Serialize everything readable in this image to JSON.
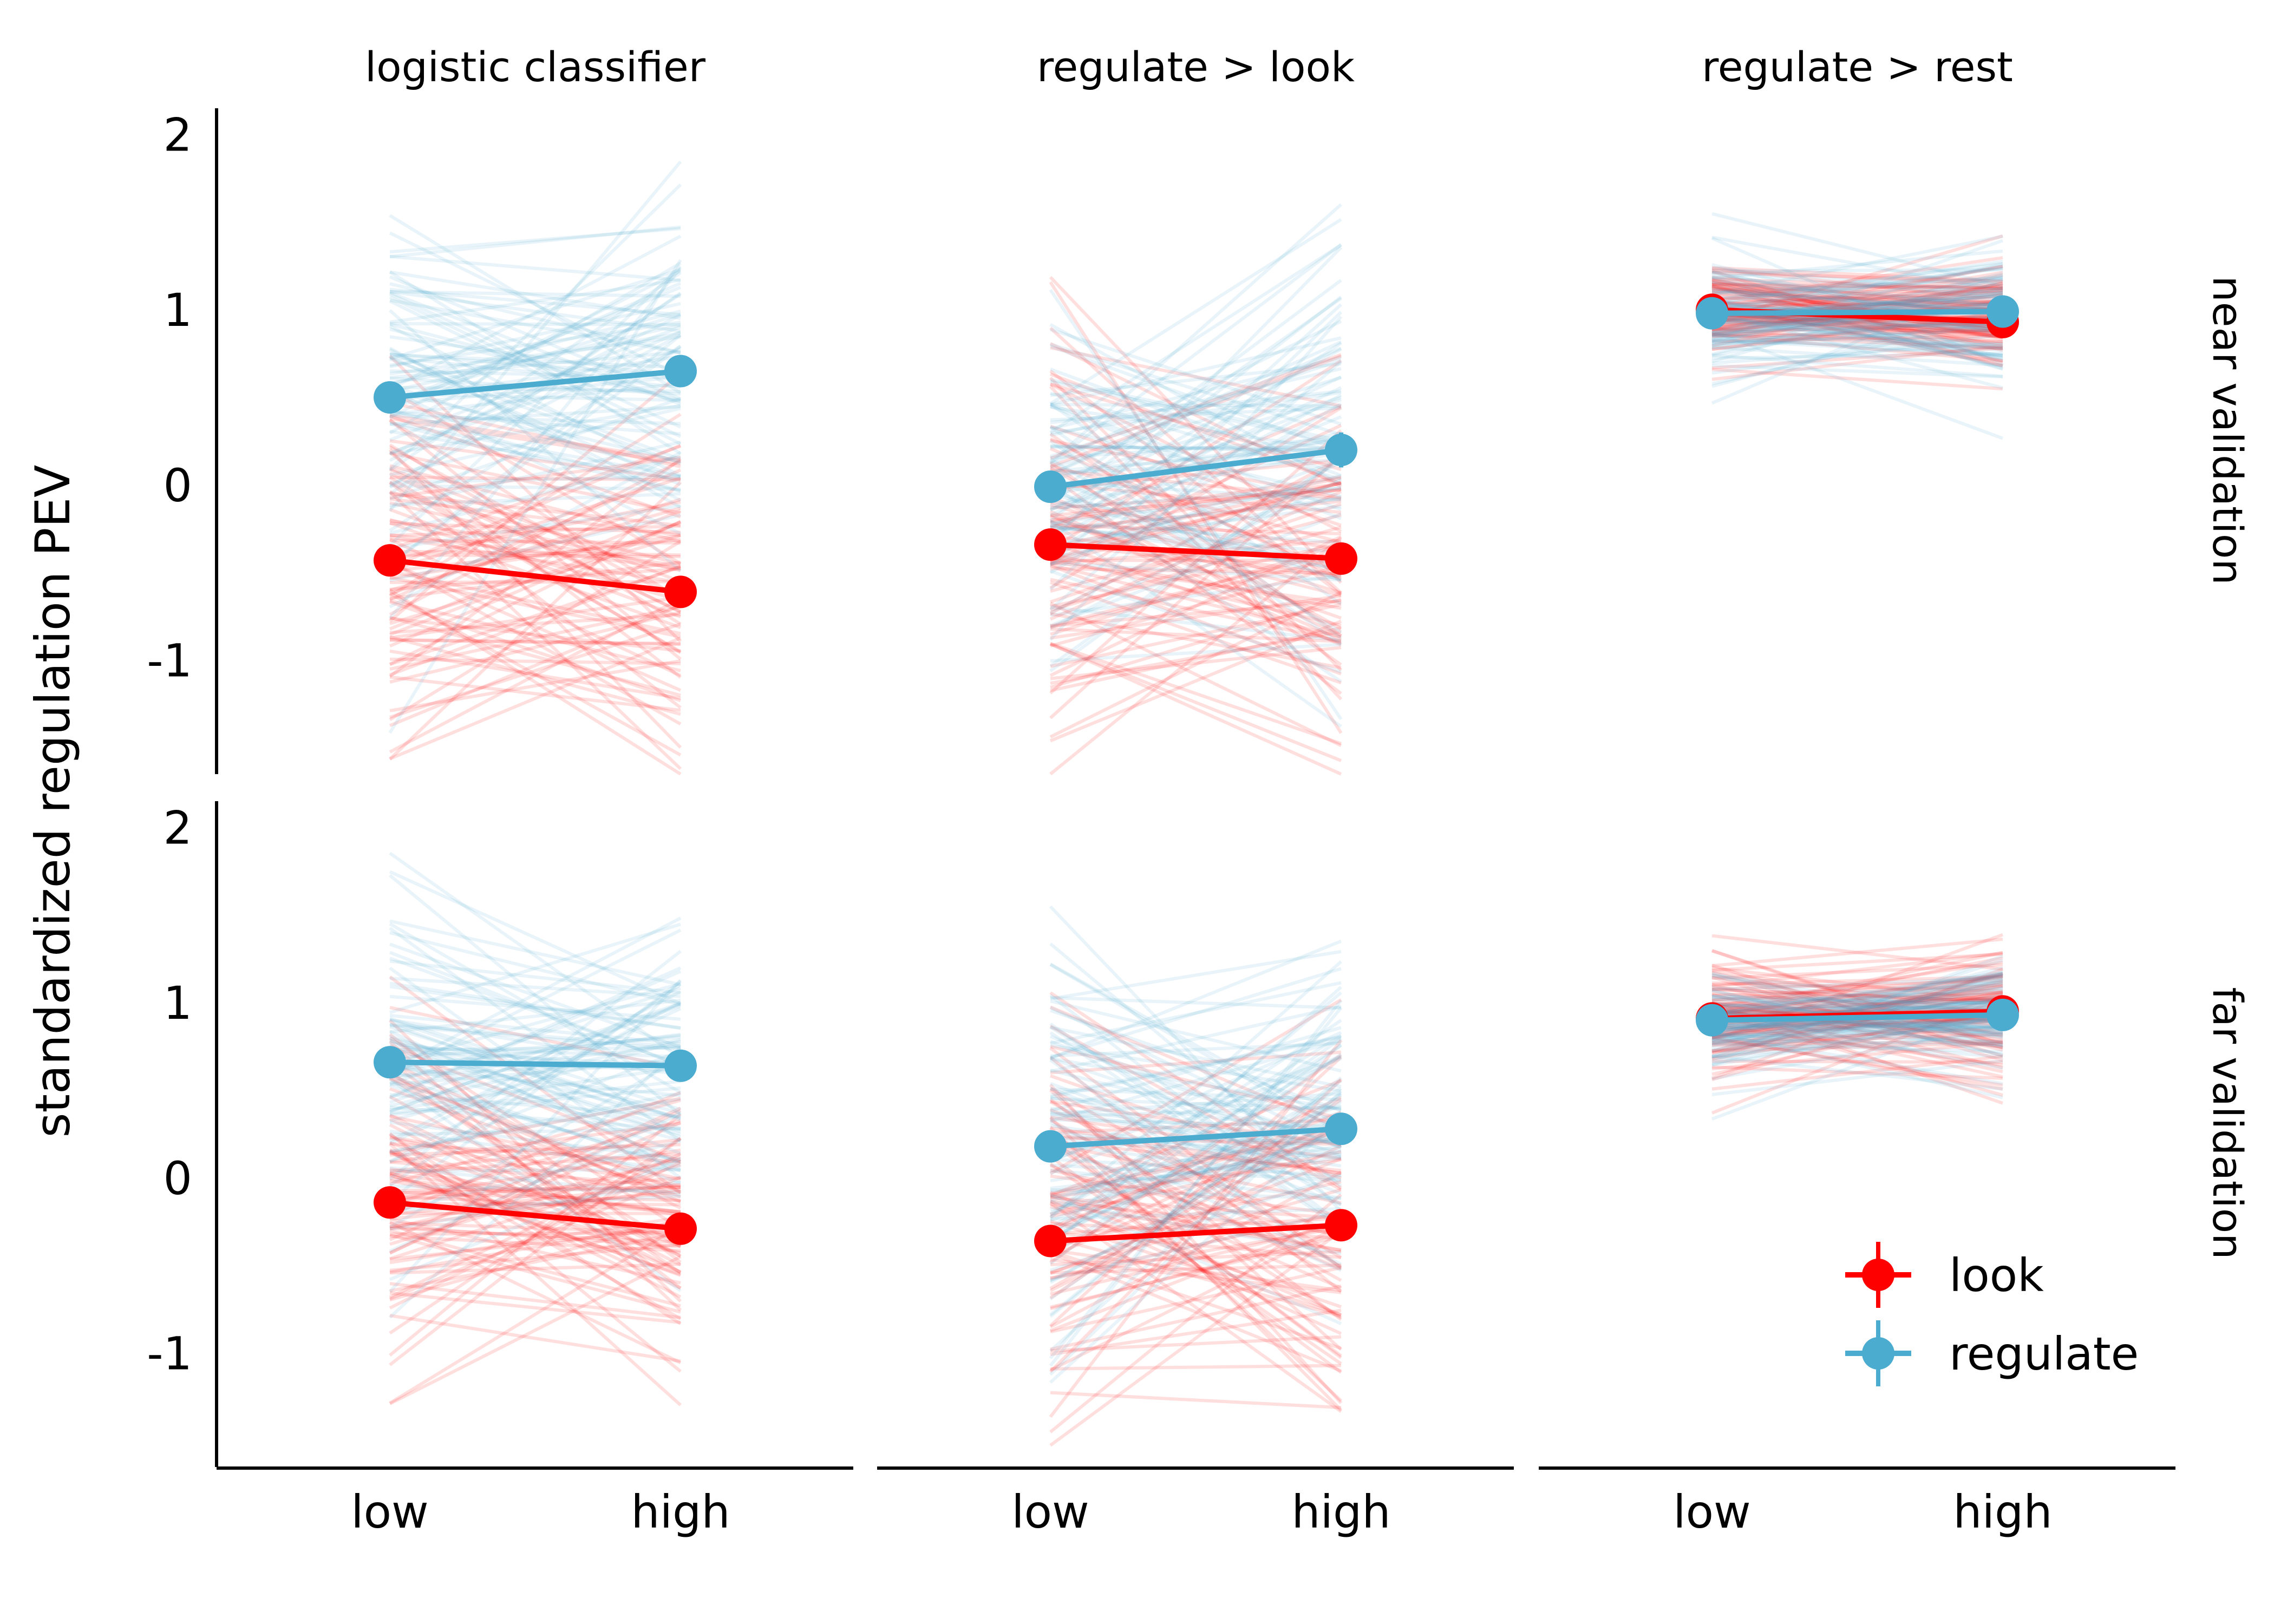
{
  "chart_data": {
    "type": "line",
    "ylabel": "standardized regulation PEV",
    "xlabel": "",
    "x_categories": [
      "low",
      "high"
    ],
    "y_ticks": [
      -1,
      0,
      1,
      2
    ],
    "ylim": [
      -1.65,
      2.15
    ],
    "columns": [
      "logistic classifier",
      "regulate > look",
      "regulate > rest"
    ],
    "rows": [
      "near validation",
      "far validation"
    ],
    "legend": {
      "position": "bottom-right",
      "entries": [
        {
          "name": "look",
          "color": "#ff0000"
        },
        {
          "name": "regulate",
          "color": "#4bacd0"
        }
      ]
    },
    "grid": false,
    "panels": [
      {
        "column": "logistic classifier",
        "row": "near validation",
        "series": [
          {
            "name": "look",
            "values": [
              -0.43,
              -0.61
            ],
            "err": [
              0.03,
              0.03
            ],
            "spread": [
              0.55,
              0.5
            ]
          },
          {
            "name": "regulate",
            "values": [
              0.5,
              0.65
            ],
            "err": [
              0.03,
              0.08
            ],
            "spread": [
              0.55,
              0.55
            ]
          }
        ]
      },
      {
        "column": "regulate > look",
        "row": "near validation",
        "series": [
          {
            "name": "look",
            "values": [
              -0.34,
              -0.42
            ],
            "err": [
              0.03,
              0.03
            ],
            "spread": [
              0.55,
              0.5
            ]
          },
          {
            "name": "regulate",
            "values": [
              -0.01,
              0.2
            ],
            "err": [
              0.03,
              0.1
            ],
            "spread": [
              0.5,
              0.6
            ]
          }
        ]
      },
      {
        "column": "regulate > rest",
        "row": "near validation",
        "series": [
          {
            "name": "look",
            "values": [
              1.0,
              0.93
            ],
            "err": [
              0.02,
              0.02
            ],
            "spread": [
              0.15,
              0.15
            ]
          },
          {
            "name": "regulate",
            "values": [
              0.98,
              0.99
            ],
            "err": [
              0.02,
              0.03
            ],
            "spread": [
              0.18,
              0.18
            ]
          }
        ]
      },
      {
        "column": "logistic classifier",
        "row": "far validation",
        "series": [
          {
            "name": "look",
            "values": [
              -0.14,
              -0.29
            ],
            "err": [
              0.04,
              0.03
            ],
            "spread": [
              0.55,
              0.45
            ]
          },
          {
            "name": "regulate",
            "values": [
              0.66,
              0.64
            ],
            "err": [
              0.03,
              0.03
            ],
            "spread": [
              0.5,
              0.45
            ]
          }
        ]
      },
      {
        "column": "regulate > look",
        "row": "far validation",
        "series": [
          {
            "name": "look",
            "values": [
              -0.36,
              -0.27
            ],
            "err": [
              0.04,
              0.03
            ],
            "spread": [
              0.6,
              0.55
            ]
          },
          {
            "name": "regulate",
            "values": [
              0.18,
              0.28
            ],
            "err": [
              0.03,
              0.03
            ],
            "spread": [
              0.6,
              0.5
            ]
          }
        ]
      },
      {
        "column": "regulate > rest",
        "row": "far validation",
        "series": [
          {
            "name": "look",
            "values": [
              0.91,
              0.95
            ],
            "err": [
              0.02,
              0.02
            ],
            "spread": [
              0.18,
              0.2
            ]
          },
          {
            "name": "regulate",
            "values": [
              0.9,
              0.93
            ],
            "err": [
              0.02,
              0.02
            ],
            "spread": [
              0.15,
              0.15
            ]
          }
        ]
      }
    ]
  }
}
